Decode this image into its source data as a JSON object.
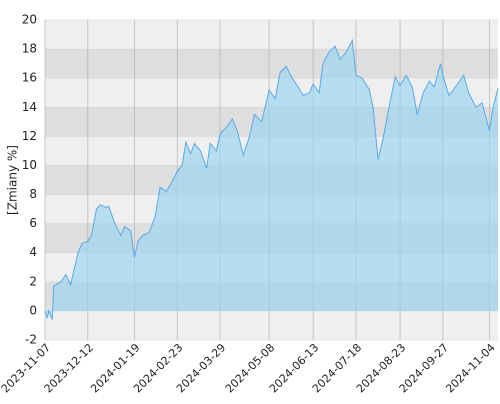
{
  "chart_data": {
    "type": "area",
    "y_label": "[Zmiany %]",
    "x": [
      "2023-11-07",
      "2023-11-09",
      "2023-11-10",
      "2023-11-13",
      "2023-11-14",
      "2023-11-20",
      "2023-11-24",
      "2023-11-28",
      "2023-11-30",
      "2023-12-04",
      "2023-12-07",
      "2023-12-12",
      "2023-12-15",
      "2023-12-19",
      "2023-12-22",
      "2023-12-27",
      "2023-12-29",
      "2024-01-03",
      "2024-01-08",
      "2024-01-11",
      "2024-01-16",
      "2024-01-19",
      "2024-01-22",
      "2024-01-26",
      "2024-01-31",
      "2024-02-05",
      "2024-02-09",
      "2024-02-14",
      "2024-02-19",
      "2024-02-23",
      "2024-02-27",
      "2024-03-01",
      "2024-03-05",
      "2024-03-08",
      "2024-03-13",
      "2024-03-18",
      "2024-03-21",
      "2024-03-26",
      "2024-03-29",
      "2024-04-03",
      "2024-04-08",
      "2024-04-12",
      "2024-04-17",
      "2024-04-22",
      "2024-04-26",
      "2024-05-02",
      "2024-05-08",
      "2024-05-13",
      "2024-05-17",
      "2024-05-22",
      "2024-05-27",
      "2024-05-31",
      "2024-06-05",
      "2024-06-10",
      "2024-06-13",
      "2024-06-18",
      "2024-06-21",
      "2024-06-26",
      "2024-07-01",
      "2024-07-05",
      "2024-07-10",
      "2024-07-15",
      "2024-07-18",
      "2024-07-23",
      "2024-07-29",
      "2024-08-01",
      "2024-08-05",
      "2024-08-09",
      "2024-08-14",
      "2024-08-19",
      "2024-08-23",
      "2024-08-28",
      "2024-09-02",
      "2024-09-06",
      "2024-09-11",
      "2024-09-16",
      "2024-09-20",
      "2024-09-25",
      "2024-09-27",
      "2024-10-02",
      "2024-10-08",
      "2024-10-14",
      "2024-10-18",
      "2024-10-24",
      "2024-10-29",
      "2024-11-04",
      "2024-11-07",
      "2024-11-11"
    ],
    "values": [
      0,
      -0.5,
      0,
      -0.6,
      1.7,
      2.0,
      2.5,
      1.8,
      2.6,
      4.0,
      4.6,
      4.8,
      5.2,
      7.0,
      7.3,
      7.1,
      7.2,
      6.0,
      5.2,
      5.8,
      5.5,
      3.7,
      4.8,
      5.2,
      5.4,
      6.5,
      8.5,
      8.2,
      8.9,
      9.6,
      10.0,
      11.6,
      10.8,
      11.5,
      11.0,
      9.8,
      11.5,
      11.0,
      12.2,
      12.6,
      13.2,
      12.4,
      10.7,
      12.0,
      13.5,
      13.0,
      15.2,
      14.6,
      16.4,
      16.8,
      16.0,
      15.5,
      14.8,
      15.0,
      15.6,
      15.0,
      17.0,
      17.8,
      18.2,
      17.3,
      17.8,
      18.6,
      16.2,
      16.0,
      15.2,
      14.0,
      10.4,
      11.8,
      14.0,
      16.1,
      15.5,
      16.2,
      15.4,
      13.5,
      15.0,
      15.8,
      15.4,
      17.0,
      16.2,
      14.8,
      15.5,
      16.2,
      15.0,
      14.0,
      14.3,
      12.4,
      14.0,
      15.3
    ],
    "color": "#5aaae8",
    "xlim": [
      "2023-11-07",
      "2024-11-11"
    ],
    "xticks": [
      "2023-11-07",
      "2023-12-12",
      "2024-01-19",
      "2024-02-23",
      "2024-03-29",
      "2024-05-08",
      "2024-06-13",
      "2024-07-18",
      "2024-08-23",
      "2024-09-27",
      "2024-11-04"
    ],
    "ylim": [
      -2,
      20
    ],
    "yticks": [
      -2,
      0,
      2,
      4,
      6,
      8,
      10,
      12,
      14,
      16,
      18,
      20
    ],
    "grid": true
  }
}
